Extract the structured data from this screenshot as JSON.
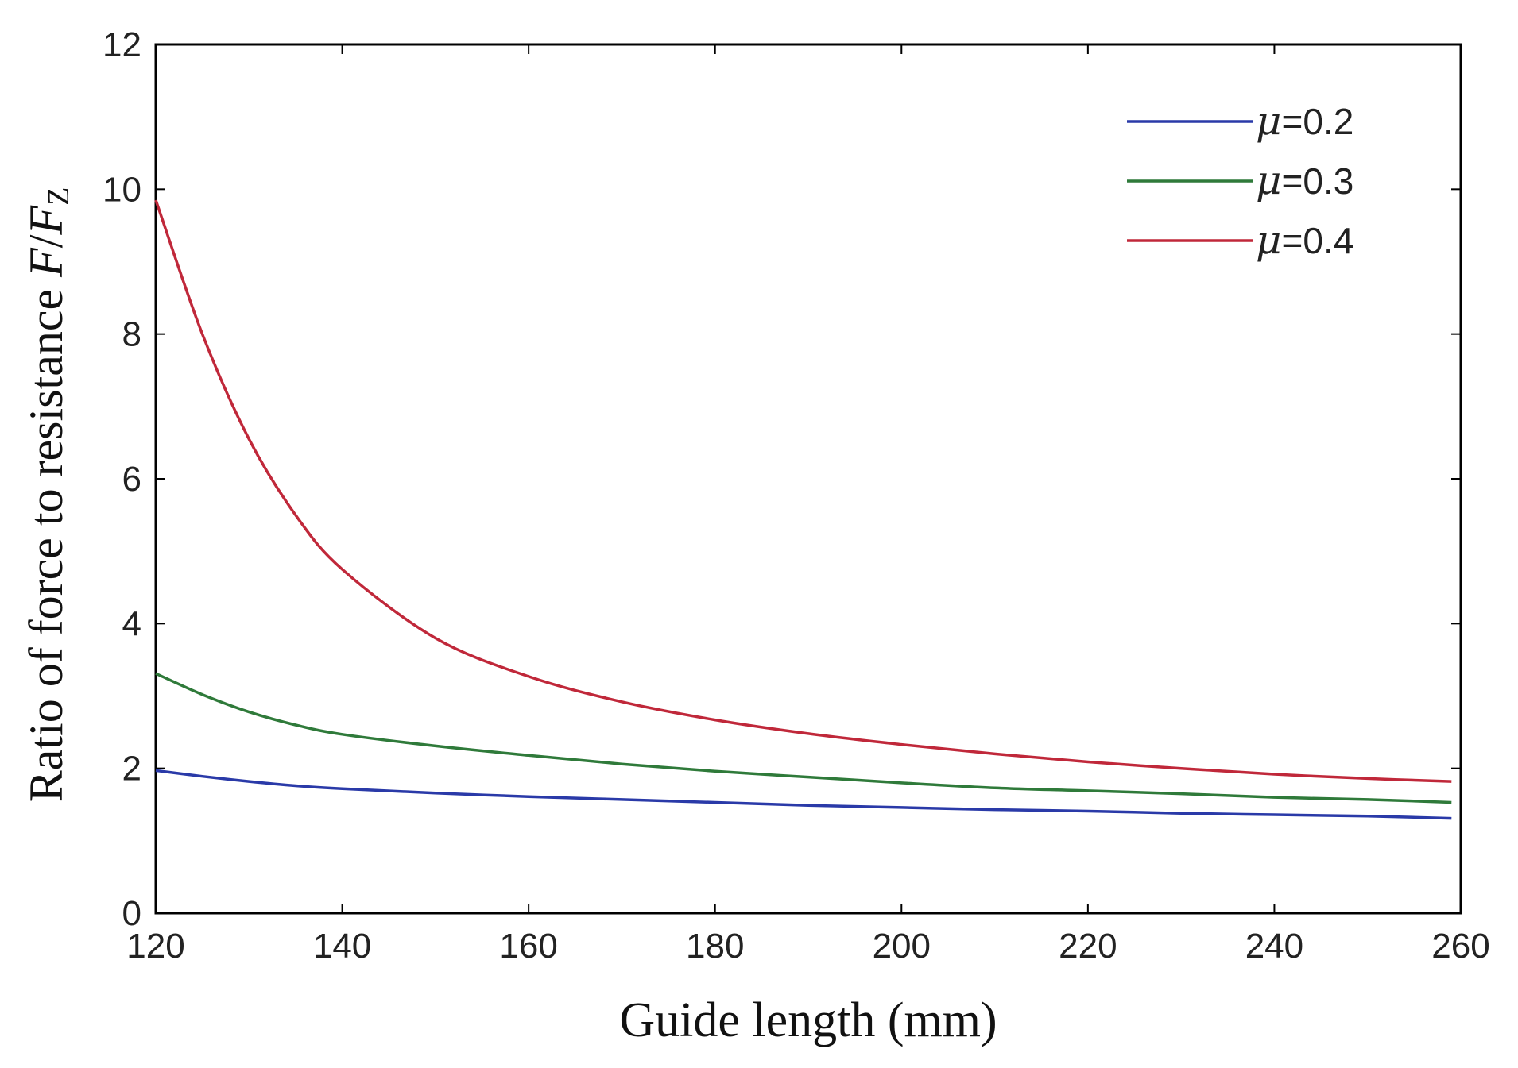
{
  "chart_data": {
    "type": "line",
    "xlabel": "Guide length (mm)",
    "ylabel": {
      "prefix": "Ratio of force to resistance ",
      "F": "F",
      "slash": "/",
      "Fz": "F",
      "sub": "Z"
    },
    "xlim": [
      120,
      260
    ],
    "ylim": [
      0,
      12
    ],
    "x_ticks": [
      120,
      140,
      160,
      180,
      200,
      220,
      240,
      260
    ],
    "y_ticks": [
      0,
      2,
      4,
      6,
      8,
      10,
      12
    ],
    "x_tick_labels": [
      "120",
      "140",
      "160",
      "180",
      "200",
      "220",
      "240",
      "260"
    ],
    "y_tick_labels": [
      "0",
      "2",
      "4",
      "6",
      "8",
      "10",
      "12"
    ],
    "grid": false,
    "legend_position": "top-right",
    "legend": [
      {
        "symbol": "μ",
        "text": "=0.2"
      },
      {
        "symbol": "μ",
        "text": "=0.3"
      },
      {
        "symbol": "μ",
        "text": "=0.4"
      }
    ],
    "x": [
      120,
      125,
      130,
      135,
      140,
      150,
      160,
      170,
      180,
      190,
      200,
      210,
      220,
      230,
      240,
      250,
      259
    ],
    "series": [
      {
        "legend_index": 0,
        "color": "#2a3aa8",
        "values": [
          1.97,
          1.89,
          1.82,
          1.76,
          1.72,
          1.66,
          1.61,
          1.57,
          1.53,
          1.49,
          1.46,
          1.43,
          1.41,
          1.38,
          1.36,
          1.34,
          1.31
        ]
      },
      {
        "legend_index": 1,
        "color": "#2f7a3a",
        "values": [
          3.31,
          3.02,
          2.78,
          2.6,
          2.47,
          2.31,
          2.18,
          2.06,
          1.96,
          1.88,
          1.8,
          1.73,
          1.69,
          1.65,
          1.6,
          1.57,
          1.53
        ]
      },
      {
        "legend_index": 2,
        "color": "#c0283a",
        "values": [
          9.85,
          8.0,
          6.55,
          5.5,
          4.75,
          3.8,
          3.27,
          2.92,
          2.67,
          2.48,
          2.33,
          2.2,
          2.09,
          2.0,
          1.92,
          1.86,
          1.82
        ]
      }
    ]
  }
}
